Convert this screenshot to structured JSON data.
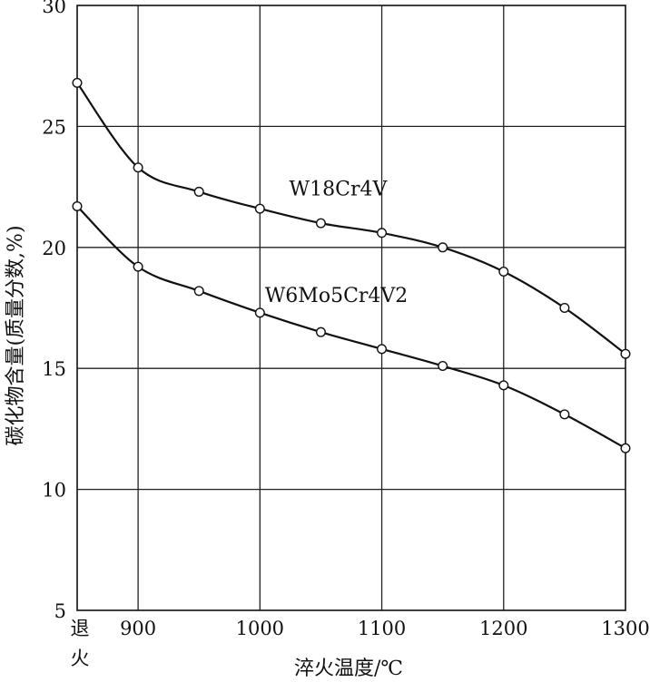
{
  "chart_data": {
    "type": "line",
    "xlabel": "淬火温度/℃",
    "ylabel": "碳化物含量(质量分数,%)",
    "x_tick_labels": [
      {
        "x": 850,
        "label": "退\n火"
      },
      {
        "x": 900,
        "label": "900"
      },
      {
        "x": 1000,
        "label": "1000"
      },
      {
        "x": 1100,
        "label": "1100"
      },
      {
        "x": 1200,
        "label": "1200"
      },
      {
        "x": 1300,
        "label": "1300"
      }
    ],
    "y_ticks": [
      5,
      10,
      15,
      20,
      25,
      30
    ],
    "xlim": [
      850,
      1300
    ],
    "ylim": [
      5,
      30
    ],
    "grid": true,
    "series": [
      {
        "name": "W18Cr4V",
        "x": [
          850,
          900,
          950,
          1000,
          1050,
          1100,
          1150,
          1200,
          1250,
          1300
        ],
        "y": [
          26.8,
          23.3,
          22.3,
          21.6,
          21.0,
          20.6,
          20.0,
          19.0,
          17.5,
          15.6
        ]
      },
      {
        "name": "W6Mo5Cr4V2",
        "x": [
          850,
          900,
          950,
          1000,
          1050,
          1100,
          1150,
          1200,
          1250,
          1300
        ],
        "y": [
          21.7,
          19.2,
          18.2,
          17.3,
          16.5,
          15.8,
          15.1,
          14.3,
          13.1,
          11.7
        ]
      }
    ]
  }
}
